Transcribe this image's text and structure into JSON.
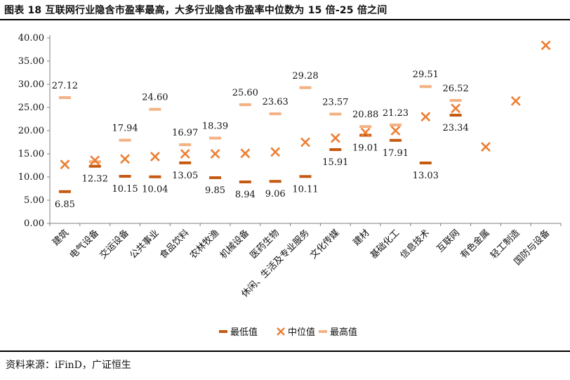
{
  "title": "图表 18 互联网行业隐含市盈率最高，大多行业隐含市盈率中位数为 15 倍-25 倍之间",
  "source": "资料来源：iFinD，广证恒生",
  "colors": {
    "min": "#c55a11",
    "median": "#ed7d31",
    "max": "#f4b183",
    "axis": "#7f7f7f"
  },
  "chart_data": {
    "type": "scatter",
    "title": "图表 18 互联网行业隐含市盈率最高，大多行业隐含市盈率中位数为 15 倍-25 倍之间",
    "ylim": [
      0,
      40
    ],
    "yticks": [
      "0.00",
      "5.00",
      "10.00",
      "15.00",
      "20.00",
      "25.00",
      "30.00",
      "35.00",
      "40.00"
    ],
    "legend": {
      "placement": "bottom",
      "entries": [
        "最低值",
        "中位值",
        "最高值"
      ]
    },
    "categories": [
      "建筑",
      "电气设备",
      "交运设备",
      "公共事业",
      "食品饮料",
      "农林牧渔",
      "机械设备",
      "医药生物",
      "休闲、生活及专业服务",
      "文化传媒",
      "建材",
      "基础化工",
      "信息技术",
      "互联网",
      "有色金属",
      "轻工制造",
      "国防与设备"
    ],
    "series": [
      {
        "name": "最低值",
        "marker": "bar",
        "values": [
          6.85,
          12.32,
          10.15,
          10.04,
          13.05,
          9.85,
          8.94,
          9.06,
          10.11,
          15.91,
          19.01,
          17.91,
          13.03,
          23.34,
          null,
          null,
          null
        ],
        "labels": [
          "6.85",
          "12.32",
          "10.15",
          "10.04",
          "13.05",
          "9.85",
          "8.94",
          "9.06",
          "10.11",
          "15.91",
          "19.01",
          "17.91",
          "13.03",
          "23.34",
          "",
          "",
          ""
        ]
      },
      {
        "name": "中位值",
        "marker": "x",
        "values": [
          12.7,
          13.6,
          13.9,
          14.4,
          15.0,
          15.0,
          15.1,
          15.4,
          17.5,
          18.4,
          19.6,
          20.0,
          23.0,
          24.8,
          16.5,
          26.4,
          38.4
        ]
      },
      {
        "name": "最高值",
        "marker": "bar",
        "values": [
          27.12,
          13.3,
          17.94,
          24.6,
          16.97,
          18.39,
          25.6,
          23.63,
          29.28,
          23.57,
          20.88,
          21.23,
          29.51,
          26.52,
          null,
          null,
          null
        ],
        "labels": [
          "27.12",
          "",
          "17.94",
          "24.60",
          "16.97",
          "18.39",
          "25.60",
          "23.63",
          "29.28",
          "23.57",
          "20.88",
          "21.23",
          "29.51",
          "26.52",
          "",
          "",
          ""
        ]
      }
    ]
  }
}
